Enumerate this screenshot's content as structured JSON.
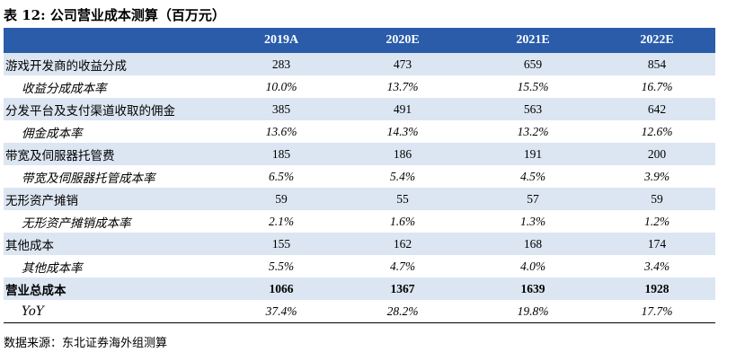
{
  "title": "表 12:  公司营业成本测算（百万元）",
  "columns": [
    "2019A",
    "2020E",
    "2021E",
    "2022E"
  ],
  "rows": [
    {
      "label": "游戏开发商的收益分成",
      "values": [
        "283",
        "473",
        "659",
        "854"
      ]
    },
    {
      "label": "收益分成成本率",
      "values": [
        "10.0%",
        "13.7%",
        "15.5%",
        "16.7%"
      ]
    },
    {
      "label": "分发平台及支付渠道收取的佣金",
      "values": [
        "385",
        "491",
        "563",
        "642"
      ]
    },
    {
      "label": "佣金成本率",
      "values": [
        "13.6%",
        "14.3%",
        "13.2%",
        "12.6%"
      ]
    },
    {
      "label": "带宽及伺服器托管费",
      "values": [
        "185",
        "186",
        "191",
        "200"
      ]
    },
    {
      "label": "带宽及伺服器托管成本率",
      "values": [
        "6.5%",
        "5.4%",
        "4.5%",
        "3.9%"
      ]
    },
    {
      "label": "无形资产摊销",
      "values": [
        "59",
        "55",
        "57",
        "59"
      ]
    },
    {
      "label": "无形资产摊销成本率",
      "values": [
        "2.1%",
        "1.6%",
        "1.3%",
        "1.2%"
      ]
    },
    {
      "label": "其他成本",
      "values": [
        "155",
        "162",
        "168",
        "174"
      ]
    },
    {
      "label": "其他成本率",
      "values": [
        "5.5%",
        "4.7%",
        "4.0%",
        "3.4%"
      ]
    },
    {
      "label": "营业总成本",
      "values": [
        "1066",
        "1367",
        "1639",
        "1928"
      ]
    },
    {
      "label": "YoY",
      "values": [
        "37.4%",
        "28.2%",
        "19.8%",
        "17.7%"
      ]
    }
  ],
  "source": "数据来源：东北证券海外组测算",
  "colors": {
    "header_bg": "#2a5caa",
    "header_text": "#ffffff",
    "stripe": "#dce6f2"
  }
}
